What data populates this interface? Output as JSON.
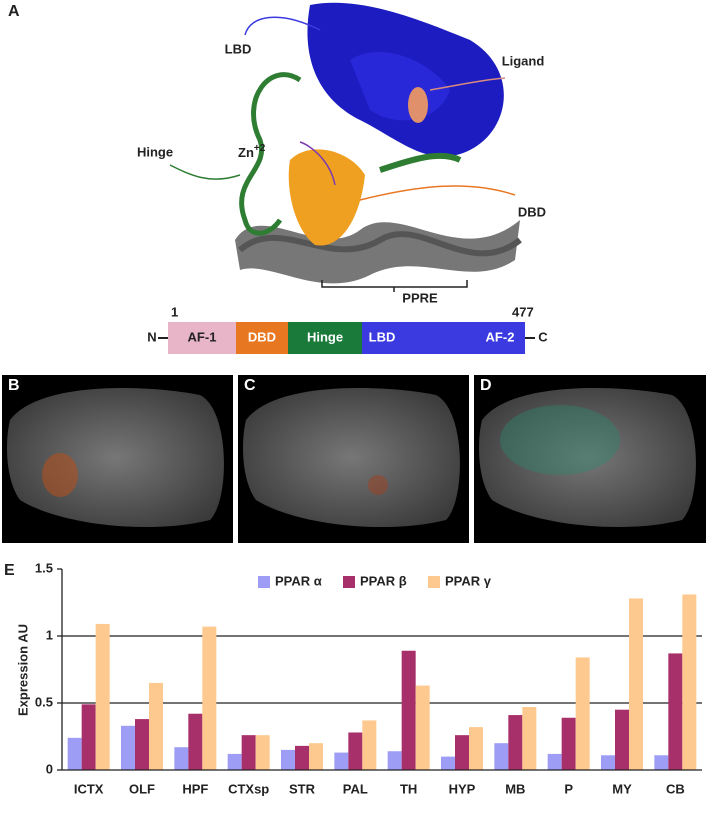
{
  "panel_a": {
    "letter": "A",
    "labels": {
      "lbd": "LBD",
      "ligand": "Ligand",
      "zn": "Zn",
      "zn_charge": "+2",
      "hinge": "Hinge",
      "dbd": "DBD",
      "ppre": "PPRE"
    },
    "domains": {
      "n": "N",
      "c": "C",
      "start": 1,
      "end": 477,
      "segments": [
        "AF-1",
        "DBD",
        "Hinge",
        "LBD",
        "AF-2"
      ]
    }
  },
  "panel_b": {
    "letter": "B"
  },
  "panel_c": {
    "letter": "C"
  },
  "panel_d": {
    "letter": "D"
  },
  "panel_e": {
    "letter": "E"
  },
  "chart_data": {
    "type": "bar",
    "y_label": "Expression AU",
    "categories": [
      "ICTX",
      "OLF",
      "HPF",
      "CTXsp",
      "STR",
      "PAL",
      "TH",
      "HYP",
      "MB",
      "P",
      "MY",
      "CB"
    ],
    "series": [
      {
        "name": "PPAR α",
        "color": "#9d9df5",
        "values": [
          0.24,
          0.33,
          0.17,
          0.12,
          0.15,
          0.13,
          0.14,
          0.1,
          0.2,
          0.12,
          0.11,
          0.11
        ]
      },
      {
        "name": "PPAR β",
        "color": "#a8306a",
        "values": [
          0.49,
          0.38,
          0.42,
          0.26,
          0.18,
          0.28,
          0.89,
          0.26,
          0.41,
          0.39,
          0.45,
          0.87
        ]
      },
      {
        "name": "PPAR γ",
        "color": "#fdc98e",
        "values": [
          1.09,
          0.65,
          1.07,
          0.26,
          0.2,
          0.37,
          0.63,
          0.32,
          0.47,
          0.84,
          1.28,
          1.31
        ]
      }
    ],
    "ylim": [
      0,
      1.5
    ],
    "yticks": [
      0,
      0.5,
      1,
      1.5
    ],
    "grid": true,
    "legend": "top"
  }
}
